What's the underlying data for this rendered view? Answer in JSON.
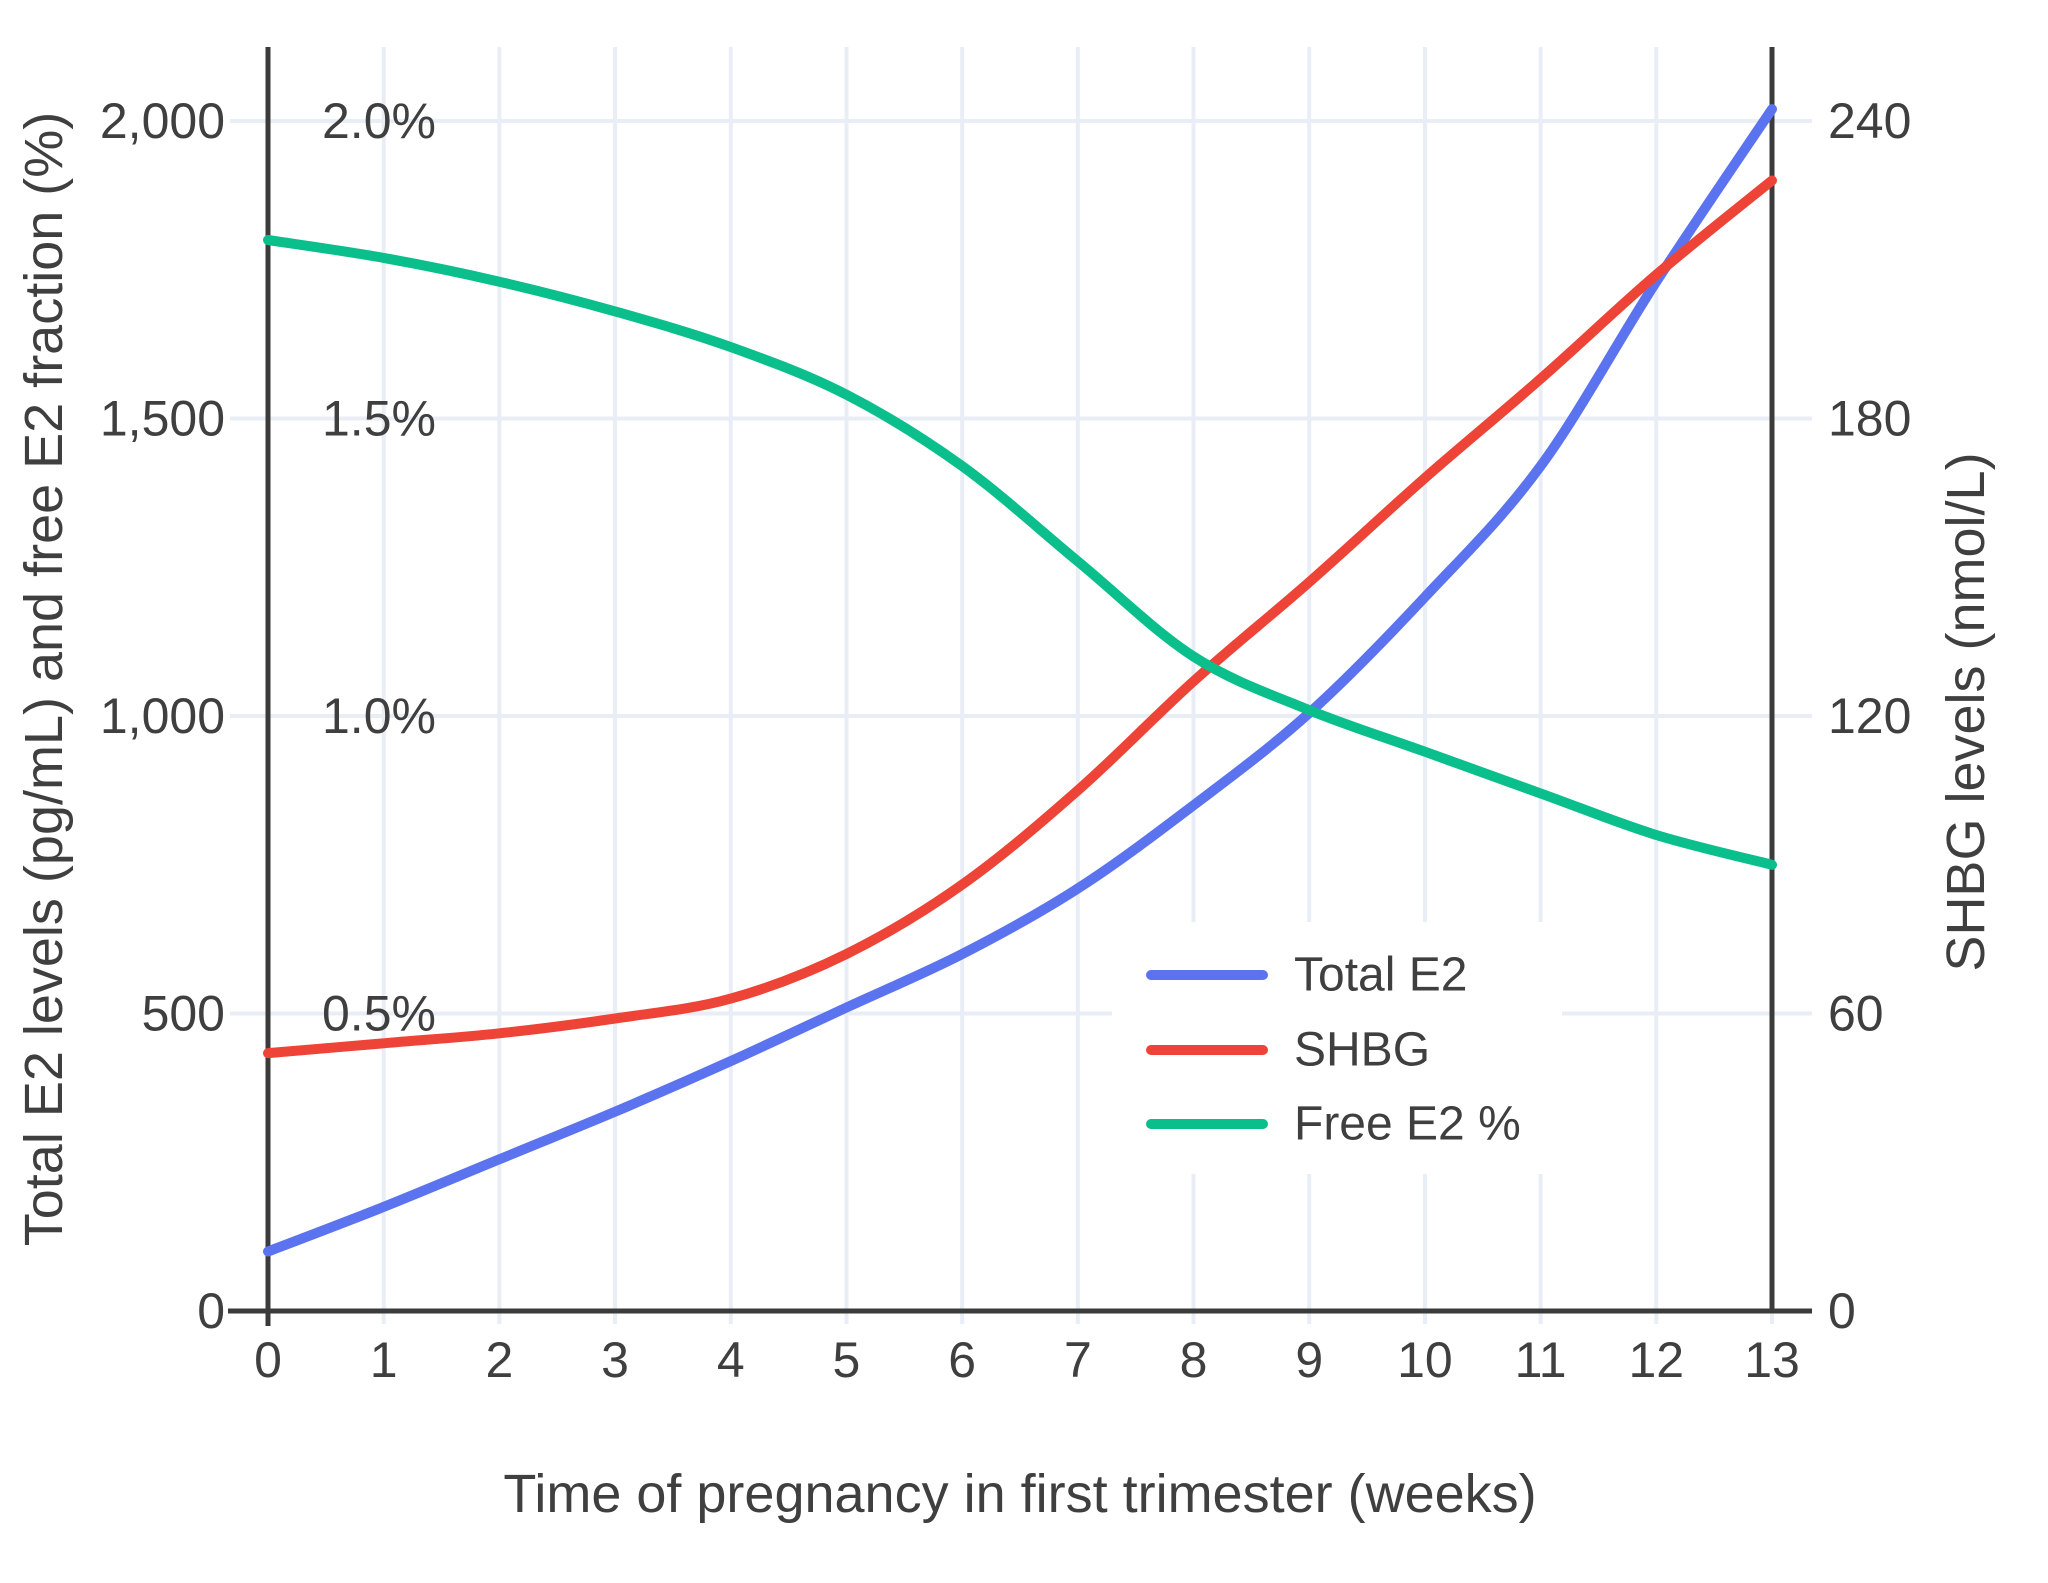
{
  "chart_data": {
    "type": "line",
    "title": "",
    "xlabel": "Time of pregnancy in first trimester (weeks)",
    "ylabel_left": "Total E2 levels (pg/mL) and free E2 fraction (%)",
    "ylabel_right": "SHBG levels (nmol/L)",
    "x": [
      0,
      1,
      2,
      3,
      4,
      5,
      6,
      7,
      8,
      9,
      10,
      11,
      12,
      13
    ],
    "x_tick_labels": [
      "0",
      "1",
      "2",
      "3",
      "4",
      "5",
      "6",
      "7",
      "8",
      "9",
      "10",
      "11",
      "12",
      "13"
    ],
    "y_left_ticks": [
      {
        "label": "0",
        "value": 0
      },
      {
        "label": "500",
        "value": 500
      },
      {
        "label": "1,000",
        "value": 1000
      },
      {
        "label": "1,500",
        "value": 1500
      },
      {
        "label": "2,000",
        "value": 2000
      }
    ],
    "y_left_pct_ticks": [
      {
        "label": "0.5%",
        "value": 500
      },
      {
        "label": "1.0%",
        "value": 1000
      },
      {
        "label": "1.5%",
        "value": 1500
      },
      {
        "label": "2.0%",
        "value": 2000
      }
    ],
    "y_right_ticks": [
      {
        "label": "0",
        "value": 0
      },
      {
        "label": "60",
        "value": 60
      },
      {
        "label": "120",
        "value": 120
      },
      {
        "label": "180",
        "value": 180
      },
      {
        "label": "240",
        "value": 240
      }
    ],
    "y_left_max": 2000,
    "y_right_max": 240,
    "pct_max": 2.0,
    "grid": true,
    "legend_position": "inside-right-middle",
    "series": [
      {
        "name": "Total E2",
        "unit": "pg/mL",
        "axis": "left",
        "color": "#5b73ee",
        "values": [
          100,
          175,
          255,
          335,
          420,
          510,
          600,
          710,
          850,
          1005,
          1200,
          1420,
          1730,
          2020
        ]
      },
      {
        "name": "SHBG",
        "unit": "nmol/L",
        "axis": "right",
        "color": "#ee4437",
        "values": [
          52,
          54,
          56,
          59,
          63,
          72,
          86,
          105,
          127,
          147,
          168,
          188,
          209,
          228
        ]
      },
      {
        "name": "Free E2 %",
        "unit": "%",
        "axis": "percent",
        "color": "#0abf8c",
        "values": [
          1.8,
          1.77,
          1.73,
          1.68,
          1.62,
          1.54,
          1.42,
          1.26,
          1.1,
          1.01,
          0.94,
          0.87,
          0.8,
          0.75
        ]
      }
    ],
    "colors": {
      "grid": "#e8edf6",
      "axis_line": "#3b3b3b",
      "text": "#3f3f3f",
      "background": "#ffffff"
    }
  }
}
